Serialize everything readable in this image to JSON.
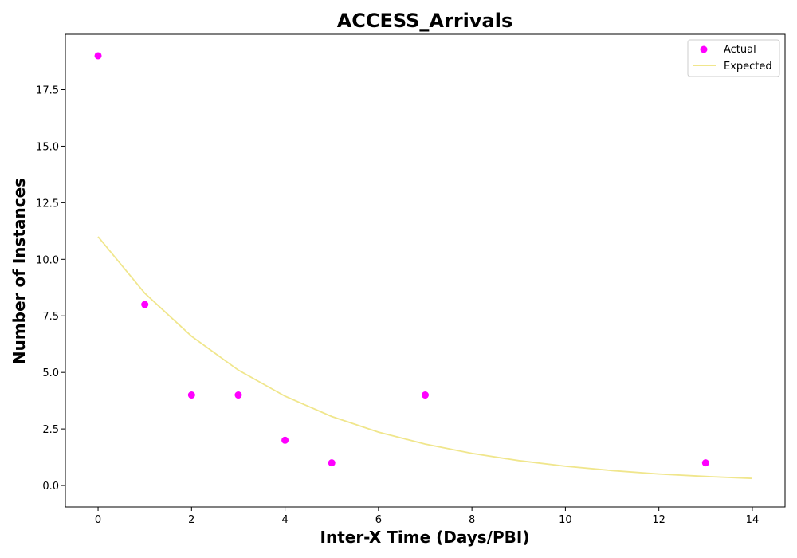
{
  "chart_data": {
    "type": "scatter",
    "title": "ACCESS_Arrivals",
    "xlabel": "Inter-X Time (Days/PBI)",
    "ylabel": "Number of Instances",
    "xlim": [
      -0.7,
      14.7
    ],
    "ylim": [
      -0.95,
      19.95
    ],
    "x_ticks": [
      0,
      2,
      4,
      6,
      8,
      10,
      12,
      14
    ],
    "y_ticks": [
      0.0,
      2.5,
      5.0,
      7.5,
      10.0,
      12.5,
      15.0,
      17.5
    ],
    "x_tick_labels": [
      "0",
      "2",
      "4",
      "6",
      "8",
      "10",
      "12",
      "14"
    ],
    "y_tick_labels": [
      "0.0",
      "2.5",
      "5.0",
      "7.5",
      "10.0",
      "12.5",
      "15.0",
      "17.5"
    ],
    "grid": false,
    "legend_position": "top-right",
    "series": [
      {
        "name": "Actual",
        "kind": "scatter",
        "color": "#ff00ff",
        "points": [
          {
            "x": 0,
            "y": 19
          },
          {
            "x": 1,
            "y": 8
          },
          {
            "x": 2,
            "y": 4
          },
          {
            "x": 3,
            "y": 4
          },
          {
            "x": 4,
            "y": 2
          },
          {
            "x": 5,
            "y": 1
          },
          {
            "x": 7,
            "y": 4
          },
          {
            "x": 13,
            "y": 1
          }
        ]
      },
      {
        "name": "Expected",
        "kind": "line",
        "color": "#f0e68c",
        "points": [
          {
            "x": 0,
            "y": 11.0
          },
          {
            "x": 1,
            "y": 8.5
          },
          {
            "x": 2,
            "y": 6.6
          },
          {
            "x": 3,
            "y": 5.1
          },
          {
            "x": 4,
            "y": 3.95
          },
          {
            "x": 5,
            "y": 3.05
          },
          {
            "x": 6,
            "y": 2.36
          },
          {
            "x": 7,
            "y": 1.83
          },
          {
            "x": 8,
            "y": 1.42
          },
          {
            "x": 9,
            "y": 1.1
          },
          {
            "x": 10,
            "y": 0.85
          },
          {
            "x": 11,
            "y": 0.66
          },
          {
            "x": 12,
            "y": 0.51
          },
          {
            "x": 13,
            "y": 0.4
          },
          {
            "x": 14,
            "y": 0.31
          }
        ]
      }
    ]
  }
}
